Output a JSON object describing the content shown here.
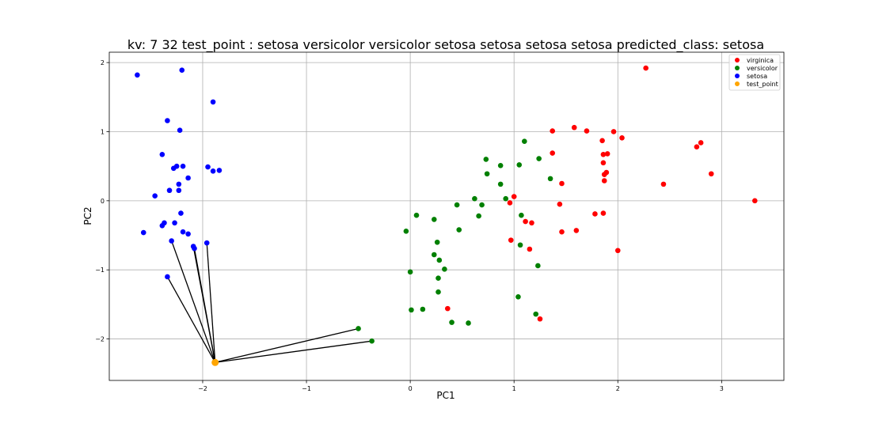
{
  "chart_data": {
    "type": "scatter",
    "title": "kv: 7 32 test_point : setosa versicolor versicolor setosa setosa setosa setosa   predicted_class: setosa",
    "xlabel": "PC1",
    "ylabel": "PC2",
    "xlim": [
      -2.9,
      3.6
    ],
    "ylim": [
      -2.6,
      2.15
    ],
    "x_ticks": [
      -2,
      -1,
      0,
      1,
      2,
      3
    ],
    "y_ticks": [
      -2,
      -1,
      0,
      1,
      2
    ],
    "grid": true,
    "legend_position": "top-right",
    "series": [
      {
        "name": "virginica",
        "color": "#ff0000",
        "points": [
          [
            2.27,
            1.92
          ],
          [
            1.58,
            1.06
          ],
          [
            1.37,
            1.01
          ],
          [
            1.7,
            1.01
          ],
          [
            1.96,
            1.0
          ],
          [
            2.04,
            0.91
          ],
          [
            1.85,
            0.87
          ],
          [
            2.8,
            0.84
          ],
          [
            2.76,
            0.78
          ],
          [
            1.37,
            0.69
          ],
          [
            1.86,
            0.67
          ],
          [
            1.9,
            0.68
          ],
          [
            1.86,
            0.55
          ],
          [
            1.89,
            0.41
          ],
          [
            1.87,
            0.38
          ],
          [
            2.9,
            0.39
          ],
          [
            1.87,
            0.29
          ],
          [
            1.46,
            0.25
          ],
          [
            2.44,
            0.24
          ],
          [
            1.0,
            0.06
          ],
          [
            3.32,
            -0.0
          ],
          [
            0.96,
            -0.03
          ],
          [
            1.44,
            -0.05
          ],
          [
            1.78,
            -0.19
          ],
          [
            1.86,
            -0.18
          ],
          [
            1.11,
            -0.3
          ],
          [
            1.17,
            -0.32
          ],
          [
            1.6,
            -0.43
          ],
          [
            1.46,
            -0.45
          ],
          [
            0.97,
            -0.57
          ],
          [
            1.15,
            -0.7
          ],
          [
            2.0,
            -0.72
          ],
          [
            0.36,
            -1.56
          ],
          [
            1.25,
            -1.71
          ]
        ]
      },
      {
        "name": "versicolor",
        "color": "#008000",
        "points": [
          [
            1.1,
            0.86
          ],
          [
            0.73,
            0.6
          ],
          [
            1.24,
            0.61
          ],
          [
            0.87,
            0.51
          ],
          [
            1.05,
            0.52
          ],
          [
            0.74,
            0.39
          ],
          [
            1.35,
            0.32
          ],
          [
            0.87,
            0.24
          ],
          [
            0.92,
            0.03
          ],
          [
            0.62,
            0.03
          ],
          [
            0.69,
            -0.06
          ],
          [
            0.45,
            -0.06
          ],
          [
            0.06,
            -0.21
          ],
          [
            0.66,
            -0.22
          ],
          [
            1.07,
            -0.21
          ],
          [
            0.23,
            -0.27
          ],
          [
            0.47,
            -0.42
          ],
          [
            -0.04,
            -0.44
          ],
          [
            0.26,
            -0.6
          ],
          [
            1.06,
            -0.64
          ],
          [
            0.23,
            -0.78
          ],
          [
            0.28,
            -0.86
          ],
          [
            1.23,
            -0.94
          ],
          [
            0.33,
            -0.99
          ],
          [
            0.0,
            -1.03
          ],
          [
            0.27,
            -1.12
          ],
          [
            0.27,
            -1.32
          ],
          [
            1.04,
            -1.39
          ],
          [
            0.12,
            -1.57
          ],
          [
            0.01,
            -1.58
          ],
          [
            1.21,
            -1.64
          ],
          [
            0.4,
            -1.76
          ],
          [
            0.56,
            -1.77
          ],
          [
            -0.5,
            -1.85
          ],
          [
            -0.37,
            -2.03
          ]
        ]
      },
      {
        "name": "setosa",
        "color": "#0000ff",
        "points": [
          [
            -2.63,
            1.82
          ],
          [
            -2.2,
            1.89
          ],
          [
            -1.9,
            1.43
          ],
          [
            -2.34,
            1.16
          ],
          [
            -2.22,
            1.02
          ],
          [
            -2.39,
            0.67
          ],
          [
            -2.25,
            0.5
          ],
          [
            -2.28,
            0.47
          ],
          [
            -2.19,
            0.5
          ],
          [
            -1.95,
            0.49
          ],
          [
            -1.9,
            0.43
          ],
          [
            -1.84,
            0.44
          ],
          [
            -2.14,
            0.33
          ],
          [
            -2.23,
            0.24
          ],
          [
            -2.23,
            0.15
          ],
          [
            -2.32,
            0.15
          ],
          [
            -2.46,
            0.07
          ],
          [
            -2.21,
            -0.18
          ],
          [
            -2.27,
            -0.32
          ],
          [
            -2.37,
            -0.32
          ],
          [
            -2.39,
            -0.36
          ],
          [
            -2.57,
            -0.46
          ],
          [
            -2.19,
            -0.45
          ],
          [
            -2.14,
            -0.48
          ],
          [
            -2.3,
            -0.58
          ],
          [
            -1.96,
            -0.61
          ],
          [
            -2.09,
            -0.66
          ],
          [
            -2.08,
            -0.69
          ],
          [
            -2.34,
            -1.1
          ]
        ]
      },
      {
        "name": "test_point",
        "color": "#ffa500",
        "points": [
          [
            -1.88,
            -2.34
          ]
        ]
      }
    ],
    "neighbor_lines": {
      "from": [
        -1.88,
        -2.34
      ],
      "to": [
        [
          -2.3,
          -0.58
        ],
        [
          -2.09,
          -0.66
        ],
        [
          -2.08,
          -0.69
        ],
        [
          -1.96,
          -0.61
        ],
        [
          -2.34,
          -1.1
        ],
        [
          -0.5,
          -1.85
        ],
        [
          -0.37,
          -2.03
        ]
      ],
      "color": "#000000"
    }
  }
}
